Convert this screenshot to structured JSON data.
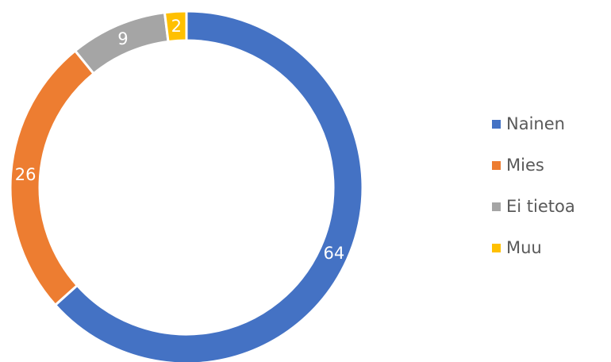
{
  "chart_data": {
    "type": "pie",
    "variant": "doughnut",
    "title": "",
    "categories": [
      "Nainen",
      "Mies",
      "Ei tietoa",
      "Muu"
    ],
    "values": [
      64,
      26,
      9,
      2
    ],
    "colors": [
      "#4472C4",
      "#ED7D31",
      "#A5A5A5",
      "#FFC000"
    ],
    "data_labels": [
      "64",
      "26",
      "9",
      "2"
    ],
    "legend_position": "right"
  }
}
